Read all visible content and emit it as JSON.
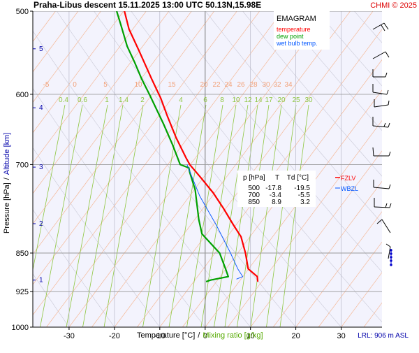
{
  "header": {
    "title": "Praha-Libus   descent   15.11.2025 13:00 UTC  50.13N,15.98E",
    "credit": "CHMI © 2025"
  },
  "legend": {
    "title": "EMAGRAM",
    "items": [
      {
        "label": "temperature",
        "color": "#ff0000"
      },
      {
        "label": "dew point",
        "color": "#00a000"
      },
      {
        "label": "wet bulb temp.",
        "color": "#0055ff"
      }
    ]
  },
  "levels_table": {
    "headers": [
      "p [hPa]",
      "T",
      "Td [°C]"
    ],
    "rows": [
      [
        "500",
        "-17.8",
        "-19.5"
      ],
      [
        "700",
        "-3.4",
        "-5.5"
      ],
      [
        "850",
        "8.9",
        "3.2"
      ]
    ]
  },
  "markers": {
    "fzlv": "FZLV",
    "wbzl": "WBZL"
  },
  "lrl": "LRL: 906 m ASL",
  "axis_labels": {
    "y_pressure": "Pressure [hPa]",
    "y_sep": "/",
    "y_altitude": "Altitude [km]",
    "x_temperature": "Temperature [°C]",
    "x_sep": "/",
    "x_mixing": "Mixing ratio [g/kg]"
  },
  "chart_data": {
    "type": "line",
    "x_axis": {
      "label": "Temperature [°C]",
      "range": [
        -38,
        39
      ],
      "ticks": [
        -30,
        -20,
        -10,
        0,
        10,
        20,
        30
      ]
    },
    "y_axis": {
      "label": "Pressure [hPa]",
      "scale": "log",
      "range": [
        1000,
        500
      ],
      "ticks": [
        500,
        600,
        700,
        850,
        925,
        1000
      ]
    },
    "altitude_ticks_km": [
      1,
      2,
      3,
      4,
      5
    ],
    "altitude_tick_pressures": [
      902,
      797,
      704,
      618,
      543
    ],
    "isotherm_labels": [
      "-5",
      "0",
      "5",
      "10",
      "15",
      "20",
      "22",
      "24",
      "26",
      "28",
      "30",
      "32",
      "34"
    ],
    "isotherm_values": [
      -5,
      0,
      5,
      10,
      15,
      20,
      22,
      24,
      26,
      28,
      30,
      32,
      34
    ],
    "mixing_ratio_labels": [
      "0.4",
      "0.6",
      "1",
      "1.4",
      "2",
      "4",
      "6",
      "8",
      "10",
      "12",
      "14",
      "17",
      "20",
      "25",
      "30"
    ],
    "mixing_ratio_values": [
      0.4,
      0.6,
      1,
      1.4,
      2,
      4,
      6,
      8,
      10,
      12,
      14,
      17,
      20,
      25,
      30
    ],
    "series": [
      {
        "name": "temperature",
        "color": "#ff0000",
        "points": [
          [
            500,
            -17.8
          ],
          [
            520,
            -16.8
          ],
          [
            545,
            -14.6
          ],
          [
            580,
            -11.8
          ],
          [
            605,
            -9.8
          ],
          [
            630,
            -8.3
          ],
          [
            660,
            -6.4
          ],
          [
            690,
            -4.2
          ],
          [
            700,
            -3.4
          ],
          [
            720,
            -1.0
          ],
          [
            745,
            1.8
          ],
          [
            770,
            4.0
          ],
          [
            800,
            6.3
          ],
          [
            820,
            7.9
          ],
          [
            850,
            8.9
          ],
          [
            880,
            9.5
          ],
          [
            895,
            11.5
          ],
          [
            905,
            11.6
          ]
        ]
      },
      {
        "name": "dew point",
        "color": "#00a000",
        "points": [
          [
            500,
            -19.5
          ],
          [
            515,
            -18.6
          ],
          [
            540,
            -17.2
          ],
          [
            560,
            -15.5
          ],
          [
            580,
            -14.0
          ],
          [
            600,
            -12.3
          ],
          [
            640,
            -9.2
          ],
          [
            670,
            -7.2
          ],
          [
            700,
            -5.5
          ],
          [
            705,
            -3.6
          ],
          [
            712,
            -3.4
          ],
          [
            740,
            -2.2
          ],
          [
            790,
            -1.4
          ],
          [
            815,
            -0.7
          ],
          [
            850,
            3.2
          ],
          [
            880,
            4.5
          ],
          [
            895,
            5.1
          ],
          [
            902,
            1.2
          ],
          [
            905,
            0.2
          ]
        ]
      },
      {
        "name": "wet bulb temp.",
        "color": "#0055ff",
        "points": [
          [
            700,
            -4.0
          ],
          [
            750,
            -1.2
          ],
          [
            800,
            2.5
          ],
          [
            850,
            5.6
          ],
          [
            880,
            7.2
          ],
          [
            895,
            8.3
          ],
          [
            900,
            6.9
          ]
        ]
      }
    ]
  }
}
